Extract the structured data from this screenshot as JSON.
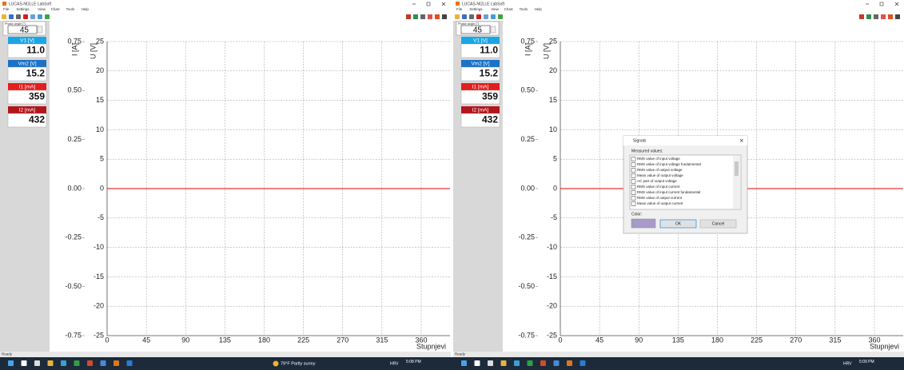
{
  "windows": [
    {
      "title": "LUCAS-NÜLLE LabSoft",
      "menu": [
        "File",
        "Settings",
        "View",
        "Chart",
        "Tools",
        "Help"
      ],
      "phase_label": "Phase angle [°]",
      "phase_value": "45",
      "meters": [
        {
          "label": "V1 [V]",
          "value": "11.0",
          "color": "#19a6e6"
        },
        {
          "label": "Vm2 [V]",
          "value": "15.2",
          "color": "#1b72c8"
        },
        {
          "label": "I1 [mA]",
          "value": "359",
          "color": "#e41e1e"
        },
        {
          "label": "I2 [mA]",
          "value": "432",
          "color": "#b3151b"
        }
      ],
      "chart": {
        "i_label": "I [A]",
        "u_label": "U [V]",
        "x_label": "Stupnjevi",
        "ilim": [
          -0.75,
          0.75
        ],
        "iticks": [
          0.75,
          {
            "value": 0.5,
            "label": "0.50"
          },
          0.25,
          {
            "value": 0,
            "label": "0.00"
          },
          -0.25,
          {
            "value": -0.5,
            "label": "-0.50"
          },
          -0.75
        ],
        "ylim": [
          -25,
          25
        ],
        "yticks": [
          25,
          20,
          15,
          10,
          5,
          0,
          -5,
          -10,
          -15,
          -20,
          -25
        ],
        "xlim": [
          0,
          393
        ],
        "xticks": [
          0,
          45,
          90,
          135,
          180,
          225,
          270,
          315,
          360
        ],
        "trace": {
          "color": "#e00000",
          "x": [
            0,
            393
          ],
          "values": [
            0,
            0
          ]
        }
      },
      "status": "Ready",
      "taskbar": {
        "weather": "79°F Partly sunny",
        "lang": "HRV",
        "time": "5:08 PM"
      }
    },
    {
      "title": "LUCAS-NÜLLE LabSoft",
      "menu": [
        "File",
        "Settings",
        "View",
        "Chart",
        "Tools",
        "Help"
      ],
      "phase_label": "Phase angle [°]",
      "phase_value": "45",
      "meters": [
        {
          "label": "V1 [V]",
          "value": "11.0",
          "color": "#19a6e6"
        },
        {
          "label": "Vm2 [V]",
          "value": "15.2",
          "color": "#1b72c8"
        },
        {
          "label": "I1 [mA]",
          "value": "359",
          "color": "#e41e1e"
        },
        {
          "label": "I2 [mA]",
          "value": "432",
          "color": "#b3151b"
        }
      ],
      "chart": {
        "i_label": "I [A]",
        "u_label": "U [V]",
        "x_label": "Stupnjevi",
        "ilim": [
          -0.75,
          0.75
        ],
        "iticks": [
          0.75,
          {
            "value": 0.5,
            "label": "0.50"
          },
          0.25,
          {
            "value": 0,
            "label": "0.00"
          },
          -0.25,
          {
            "value": -0.5,
            "label": "-0.50"
          },
          -0.75
        ],
        "ylim": [
          -25,
          25
        ],
        "yticks": [
          25,
          20,
          15,
          10,
          5,
          0,
          -5,
          -10,
          -15,
          -20,
          -25
        ],
        "xlim": [
          0,
          393
        ],
        "xticks": [
          0,
          45,
          90,
          135,
          180,
          225,
          270,
          315,
          360
        ],
        "trace": {
          "color": "#e00000",
          "x": [
            0,
            393
          ],
          "values": [
            0,
            0
          ]
        }
      },
      "status": "Ready",
      "taskbar": {
        "lang": "HRV",
        "time": "5:09 PM"
      },
      "dialog": {
        "title": "Signals",
        "list_label": "Measured values:",
        "items": [
          "RMS value of input voltage",
          "RMS value of input voltage fundamental",
          "RMS value of output voltage",
          "Mean value of output voltage",
          "AC part of output voltage",
          "RMS value of input current",
          "RMS value of input current fundamental",
          "RMS value of output current",
          "Mean value of output current"
        ],
        "color_label": "Color:",
        "color": "#a89bc9",
        "ok": "OK",
        "cancel": "Cancel"
      }
    }
  ]
}
